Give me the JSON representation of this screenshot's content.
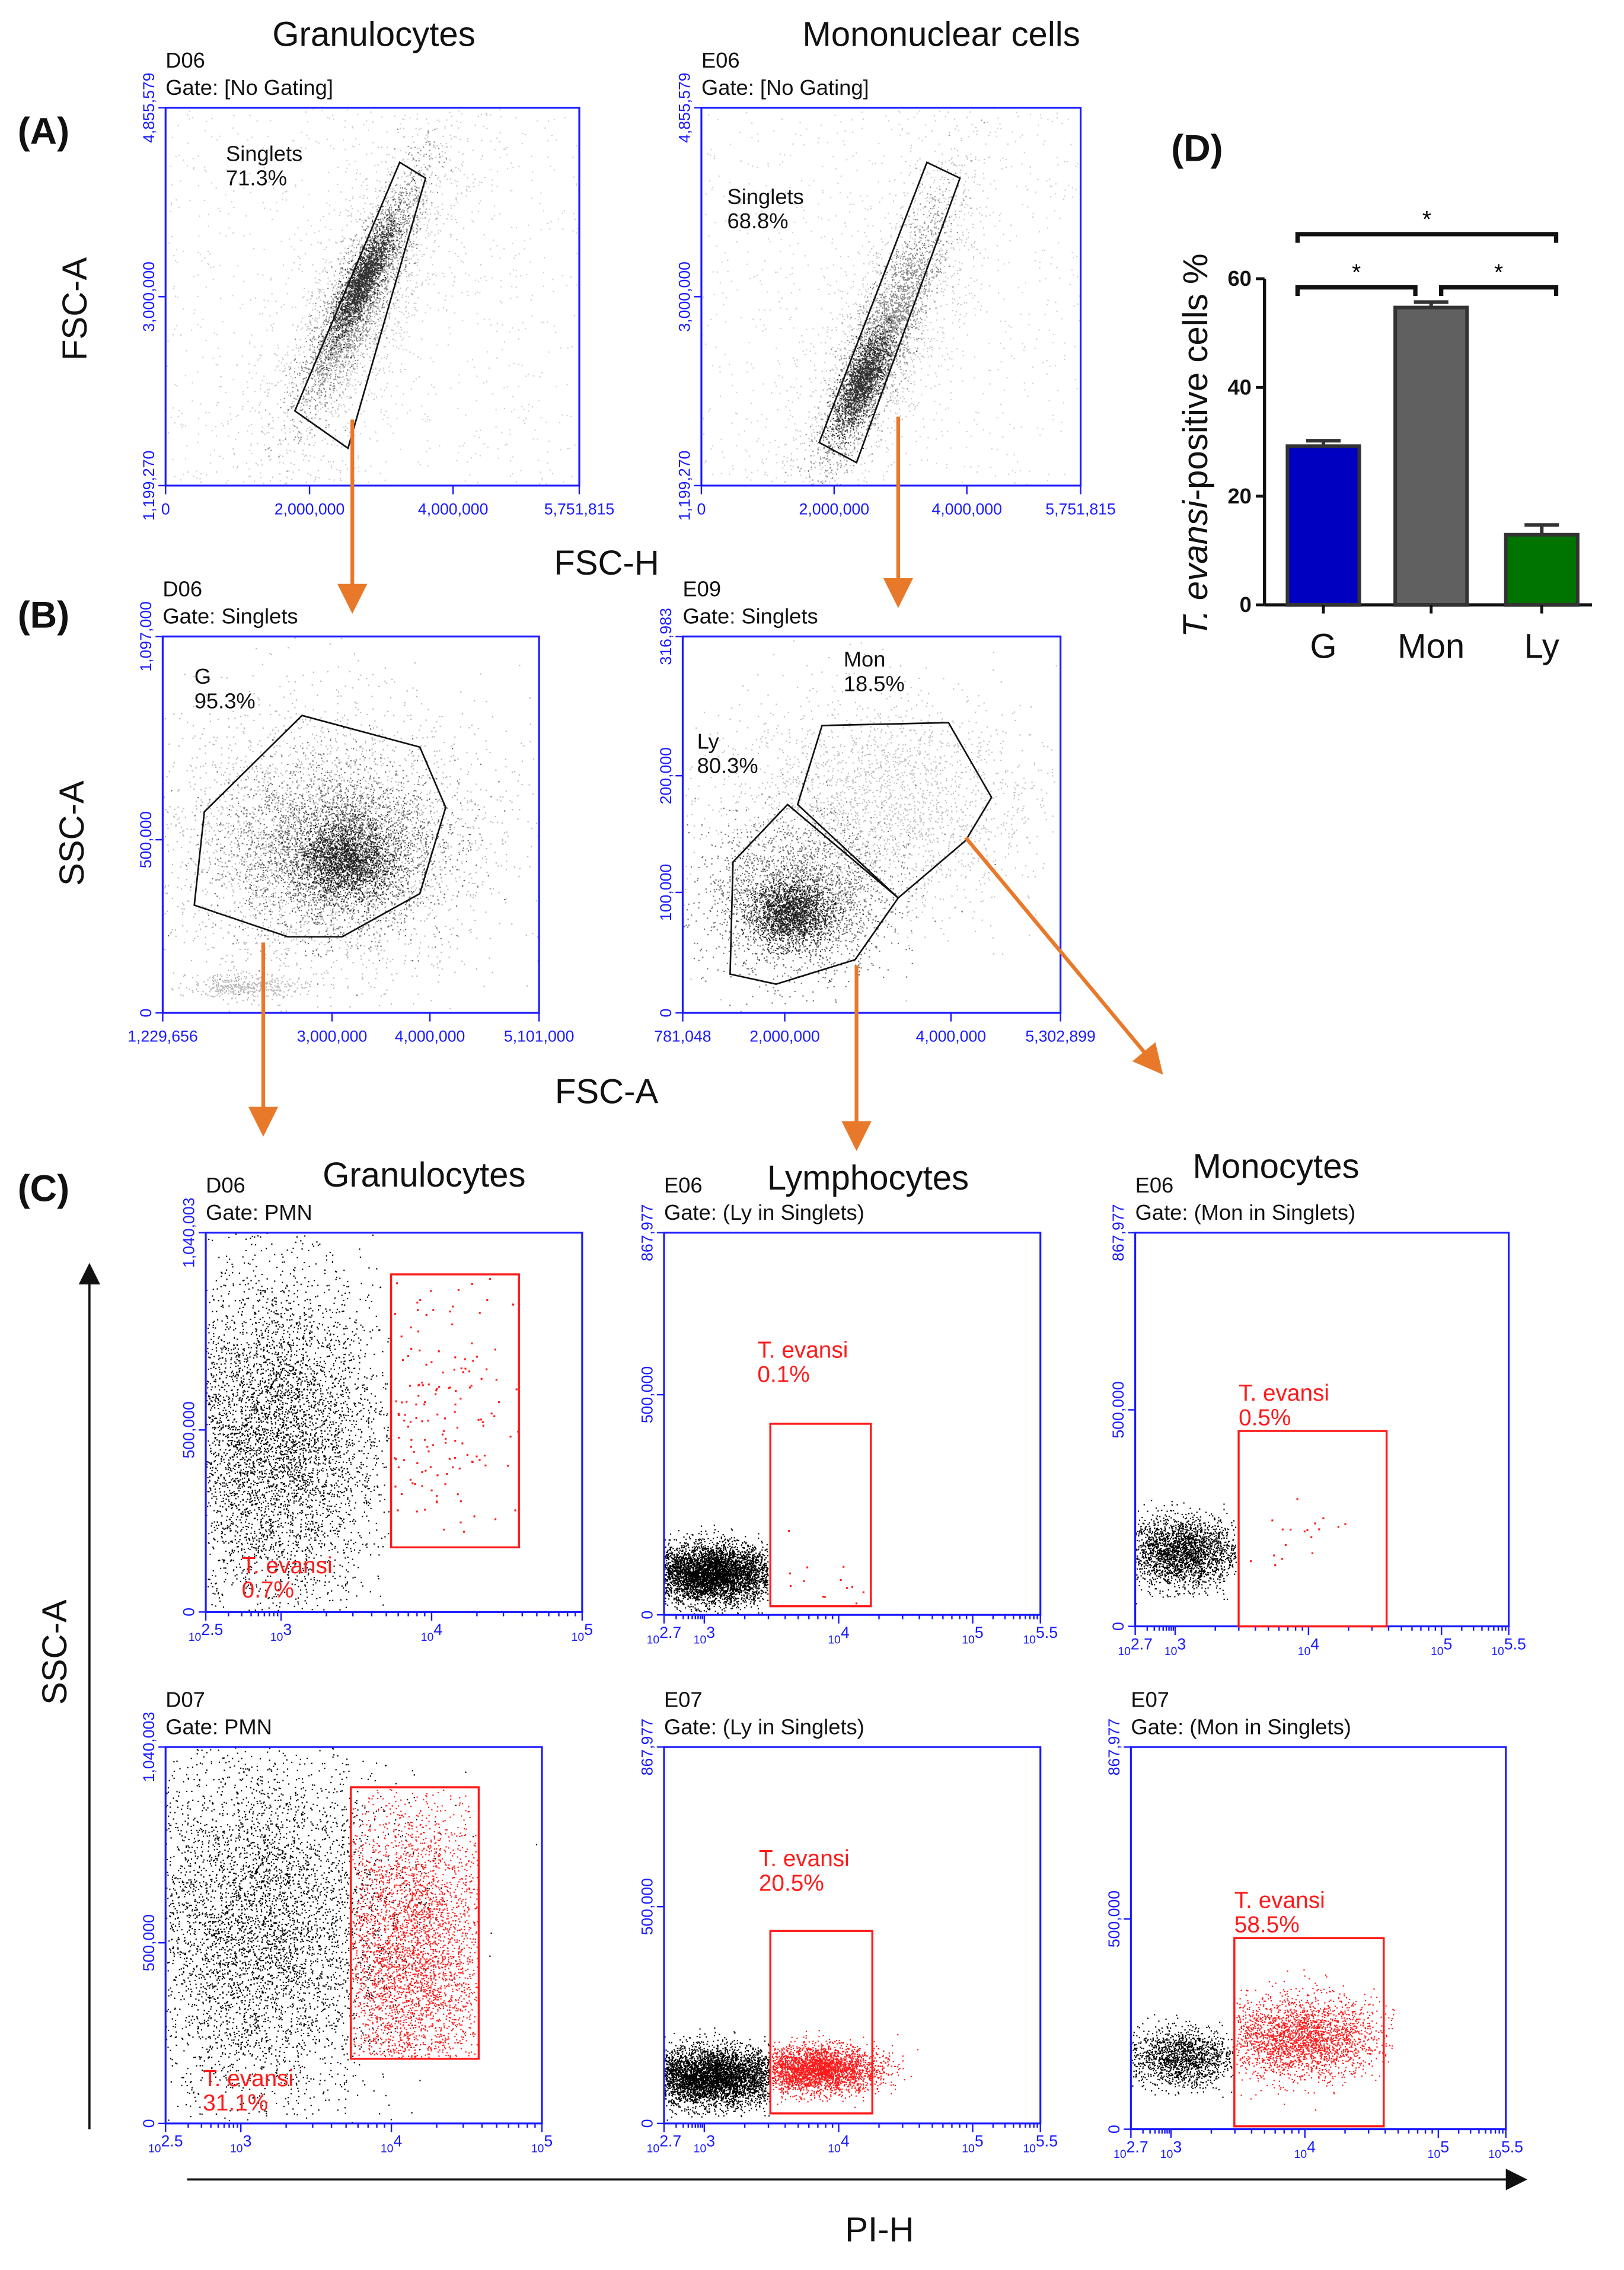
{
  "panel_labels": {
    "A": "(A)",
    "B": "(B)",
    "C": "(C)",
    "D": "(D)"
  },
  "section_titles": {
    "a_left": "Granulocytes",
    "a_right": "Mononuclear cells",
    "c_left": "Granulocytes",
    "c_mid": "Lymphocytes",
    "c_right": "Monocytes"
  },
  "axis_labels": {
    "a_y": "FSC-A",
    "a_x": "FSC-H",
    "b_y": "SSC-A",
    "b_x": "FSC-A",
    "c_y": "SSC-A",
    "c_x": "PI-H"
  },
  "plots": [
    {
      "id": "D06",
      "gate": "Gate: [No Gating]",
      "x_ticks": [
        "0",
        "2,000,000",
        "4,000,000",
        "5,751,815"
      ],
      "y_ticks": [
        "1,199,270",
        "3,000,000",
        "4,855,579"
      ],
      "gates": [
        {
          "name": "Singlets",
          "pct": "71.3%"
        }
      ]
    },
    {
      "id": "E06",
      "gate": "Gate: [No Gating]",
      "x_ticks": [
        "0",
        "2,000,000",
        "4,000,000",
        "5,751,815"
      ],
      "y_ticks": [
        "1,199,270",
        "3,000,000",
        "4,855,579"
      ],
      "gates": [
        {
          "name": "Singlets",
          "pct": "68.8%"
        }
      ]
    },
    {
      "id": "D06",
      "gate": "Gate: Singlets",
      "x_ticks": [
        "1,229,656",
        "3,000,000",
        "4,000,000",
        "5,101,000"
      ],
      "y_ticks": [
        "0",
        "500,000",
        "1,097,000"
      ],
      "gates": [
        {
          "name": "G",
          "pct": "95.3%"
        }
      ]
    },
    {
      "id": "E09",
      "gate": "Gate: Singlets",
      "x_ticks": [
        "781,048",
        "2,000,000",
        "4,000,000",
        "5,302,899"
      ],
      "y_ticks": [
        "0",
        "100,000",
        "200,000",
        "316,983"
      ],
      "gates": [
        {
          "name": "Mon",
          "pct": "18.5%"
        },
        {
          "name": "Ly",
          "pct": "80.3%"
        }
      ]
    },
    {
      "id": "D06",
      "gate": "Gate: PMN",
      "x_ticks": [
        "2.5",
        "3",
        "4",
        "5"
      ],
      "y_ticks": [
        "0",
        "500,000",
        "1,040,003"
      ],
      "gates": [
        {
          "name": "T. evansi",
          "pct": "0.7%"
        }
      ]
    },
    {
      "id": "E06",
      "gate": "Gate: (Ly in Singlets)",
      "x_ticks": [
        "2.7",
        "3",
        "4",
        "5",
        "5.5"
      ],
      "y_ticks": [
        "0",
        "500,000",
        "867,977"
      ],
      "gates": [
        {
          "name": "T. evansi",
          "pct": "0.1%"
        }
      ]
    },
    {
      "id": "E06",
      "gate": "Gate: (Mon in Singlets)",
      "x_ticks": [
        "2.7",
        "3",
        "4",
        "5",
        "5.5"
      ],
      "y_ticks": [
        "0",
        "500,000",
        "867,977"
      ],
      "gates": [
        {
          "name": "T. evansi",
          "pct": "0.5%"
        }
      ]
    },
    {
      "id": "D07",
      "gate": "Gate: PMN",
      "x_ticks": [
        "2.5",
        "3",
        "4",
        "5"
      ],
      "y_ticks": [
        "0",
        "500,000",
        "1,040,003"
      ],
      "gates": [
        {
          "name": "T. evansi",
          "pct": "31.1%"
        }
      ]
    },
    {
      "id": "E07",
      "gate": "Gate: (Ly in Singlets)",
      "x_ticks": [
        "2.7",
        "3",
        "4",
        "5",
        "5.5"
      ],
      "y_ticks": [
        "0",
        "500,000",
        "867,977"
      ],
      "gates": [
        {
          "name": "T. evansi",
          "pct": "20.5%"
        }
      ]
    },
    {
      "id": "E07",
      "gate": "Gate: (Mon in Singlets)",
      "x_ticks": [
        "2.7",
        "3",
        "4",
        "5",
        "5.5"
      ],
      "y_ticks": [
        "0",
        "500,000",
        "867,977"
      ],
      "gates": [
        {
          "name": "T. evansi",
          "pct": "58.5%"
        }
      ]
    }
  ],
  "log_base": "10",
  "colors": {
    "axis_blue": "#1a1aff",
    "gate_red": "#ff1a1a",
    "arrow_orange": "#e8792a",
    "bar_g": "#0000c0",
    "bar_mon": "#606060",
    "bar_ly": "#007400"
  },
  "chart_data": {
    "type": "bar",
    "title": "(D)",
    "categories": [
      "G",
      "Mon",
      "Ly"
    ],
    "values": [
      29.2,
      54.7,
      12.9
    ],
    "error_upper": [
      30.2,
      55.7,
      14.7
    ],
    "ylabel_italic": "T. evansi",
    "ylabel_rest": "-positive cells %",
    "xlabel": "",
    "ylim": [
      0,
      60
    ],
    "y_ticks": [
      "0",
      "20",
      "40",
      "60"
    ],
    "significance": [
      {
        "pair": [
          "G",
          "Mon"
        ],
        "mark": "*"
      },
      {
        "pair": [
          "Mon",
          "Ly"
        ],
        "mark": "*"
      },
      {
        "pair": [
          "G",
          "Ly"
        ],
        "mark": "*"
      }
    ],
    "grid": false
  }
}
